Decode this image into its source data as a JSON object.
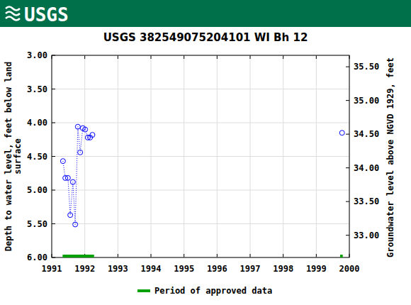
{
  "header": {
    "logo": "USGS"
  },
  "chart_data": {
    "type": "scatter",
    "title": "USGS 382549075204101 WI Bh  12",
    "ylabel": [
      "Depth to water level, feet below land",
      "surface"
    ],
    "y2label": "Groundwater level above NGVD 1929, feet",
    "xlim": [
      1991,
      2000
    ],
    "xticks": [
      1991,
      1992,
      1993,
      1994,
      1995,
      1996,
      1997,
      1998,
      1999,
      2000
    ],
    "ylim": [
      3,
      6
    ],
    "yticks": [
      {
        "value": 3,
        "label": "3.00"
      },
      {
        "value": 3.5,
        "label": "3.50"
      },
      {
        "value": 4,
        "label": "4.00"
      },
      {
        "value": 4.5,
        "label": "4.50"
      },
      {
        "value": 5,
        "label": "5.00"
      },
      {
        "value": 5.5,
        "label": "5.50"
      },
      {
        "value": 6,
        "label": "6.00"
      }
    ],
    "y2lim": [
      32.67,
      35.67
    ],
    "y2ticks": [
      {
        "value": 33,
        "label": "33.00"
      },
      {
        "value": 33.5,
        "label": "33.50"
      },
      {
        "value": 34,
        "label": "34.00"
      },
      {
        "value": 34.5,
        "label": "34.50"
      },
      {
        "value": 35,
        "label": "35.00"
      },
      {
        "value": 35.5,
        "label": "35.50"
      }
    ],
    "grid": true,
    "series": [
      {
        "color": "#0000ff",
        "marker": "circle",
        "line_style": "dotted",
        "x": [
          1991.34,
          1991.41,
          1991.49,
          1991.56,
          1991.64,
          1991.71,
          1991.79,
          1991.86,
          1991.94,
          1992.01,
          1992.09,
          1992.16,
          1992.23
        ],
        "values": [
          4.57,
          4.82,
          4.82,
          5.37,
          4.88,
          5.51,
          4.06,
          4.44,
          4.08,
          4.1,
          4.22,
          4.22,
          4.18
        ]
      },
      {
        "color": "#0000ff",
        "marker": "circle",
        "line_style": "none",
        "x": [
          1999.78
        ],
        "values": [
          4.15
        ]
      }
    ],
    "approved": {
      "name": "Period of approved data",
      "color": "#00a000",
      "ranges": [
        [
          1991.33,
          1992.28
        ],
        [
          1999.72,
          1999.8
        ]
      ]
    }
  }
}
